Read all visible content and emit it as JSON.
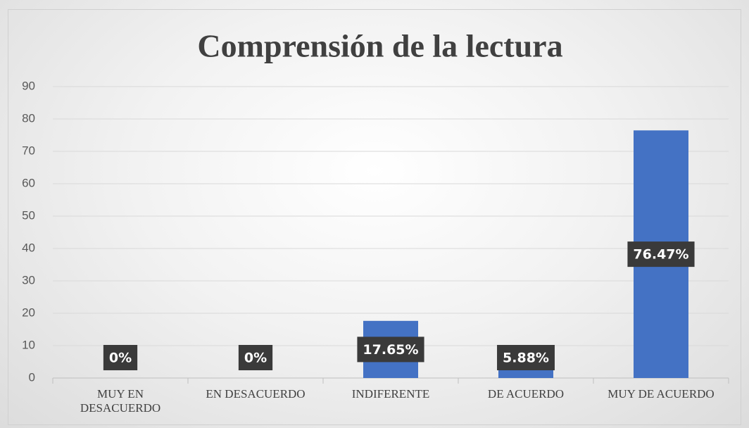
{
  "chart_data": {
    "type": "bar",
    "title": "Comprensión de la lectura",
    "categories": [
      "MUY EN DESACUERDO",
      "EN DESACUERDO",
      "INDIFERENTE",
      "DE ACUERDO",
      "MUY DE ACUERDO"
    ],
    "values": [
      0,
      0,
      17.65,
      5.88,
      76.47
    ],
    "value_labels": [
      "0%",
      "0%",
      "17.65%",
      "5.88%",
      "76.47%"
    ],
    "color": "#4472c4",
    "ylim": [
      0,
      90
    ],
    "yticks": [
      0,
      10,
      20,
      30,
      40,
      50,
      60,
      70,
      80,
      90
    ],
    "grid": true
  }
}
